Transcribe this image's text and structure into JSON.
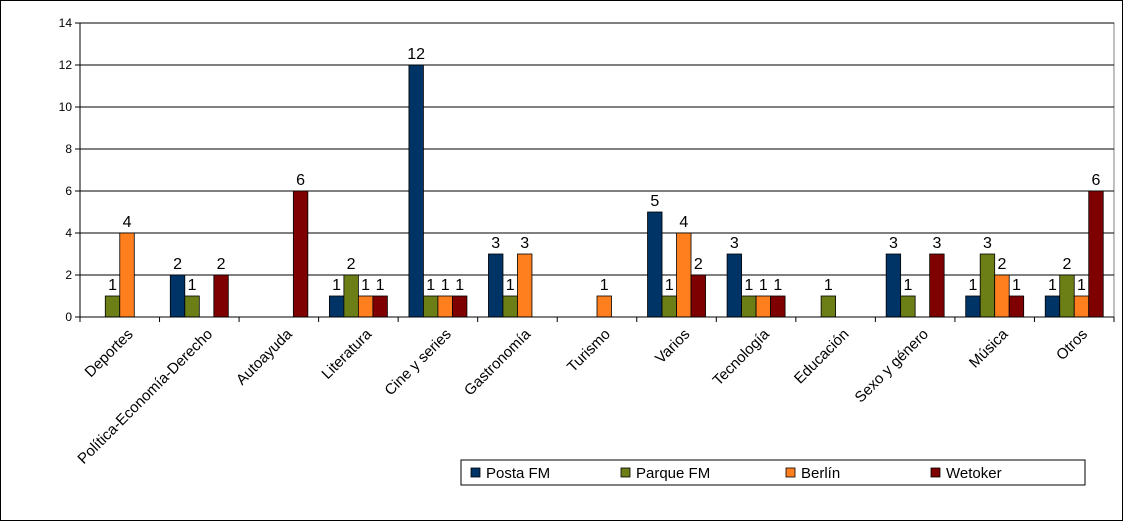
{
  "chart_data": {
    "type": "bar",
    "categories": [
      "Deportes",
      "Política-Economía-Derecho",
      "Autoayuda",
      "Literatura",
      "Cine y series",
      "Gastronomía",
      "Turismo",
      "Varios",
      "Tecnología",
      "Educación",
      "Sexo y género",
      "Música",
      "Otros"
    ],
    "series": [
      {
        "name": "Posta FM",
        "color": "#003366",
        "values": [
          null,
          2,
          null,
          1,
          12,
          3,
          null,
          5,
          3,
          null,
          3,
          1,
          1
        ]
      },
      {
        "name": "Parque FM",
        "color": "#6B7F16",
        "values": [
          1,
          1,
          null,
          2,
          1,
          1,
          null,
          1,
          1,
          1,
          1,
          3,
          2
        ]
      },
      {
        "name": "Berlín",
        "color": "#FF7F1F",
        "values": [
          4,
          null,
          null,
          1,
          1,
          3,
          1,
          4,
          1,
          null,
          null,
          2,
          1
        ]
      },
      {
        "name": "Wetoker",
        "color": "#7F0000",
        "values": [
          null,
          2,
          6,
          1,
          1,
          null,
          null,
          2,
          1,
          null,
          3,
          1,
          6
        ]
      }
    ],
    "ylim": [
      0,
      14
    ],
    "yticks": [
      0,
      2,
      4,
      6,
      8,
      10,
      12,
      14
    ],
    "grid": true,
    "legend_position": "bottom-right",
    "xlabel": "",
    "ylabel": "",
    "title": ""
  }
}
